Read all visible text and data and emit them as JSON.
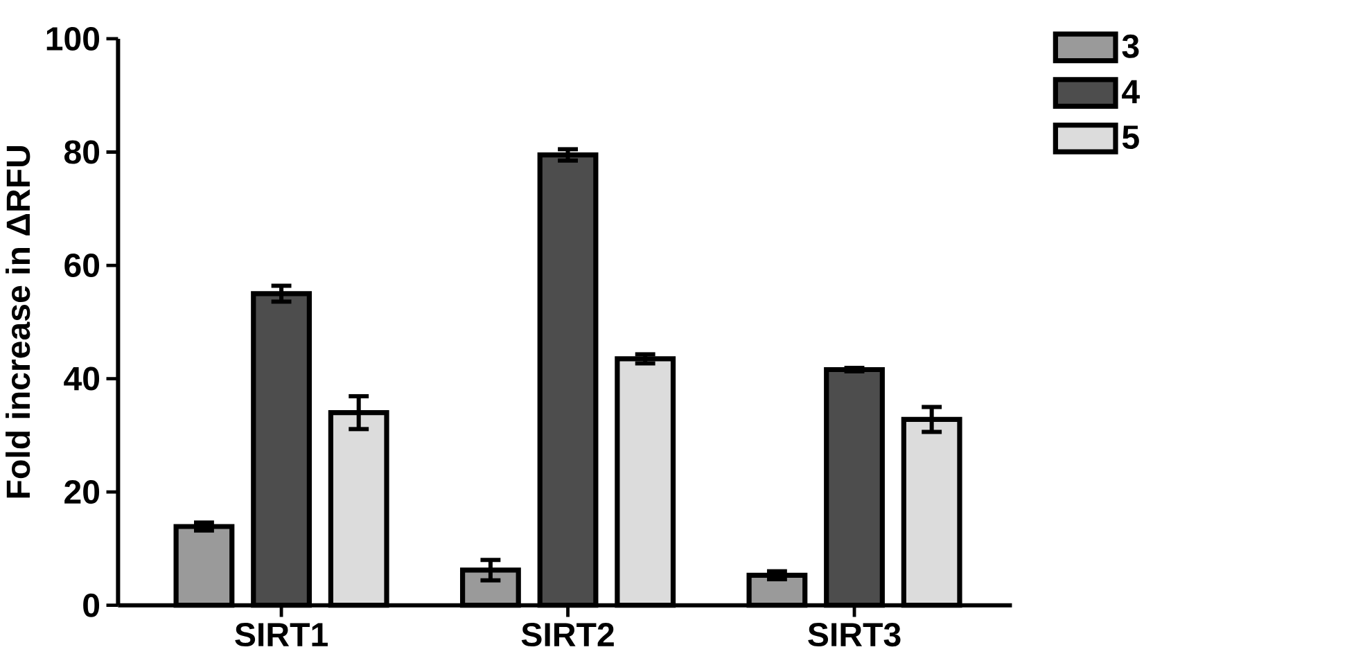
{
  "chart_data": {
    "type": "bar",
    "ylabel": "Fold increase in ΔRFU",
    "categories": [
      "SIRT1",
      "SIRT2",
      "SIRT3"
    ],
    "series": [
      {
        "name": "3",
        "color": "#9a9a9a",
        "values": [
          13.9,
          6.2,
          5.3
        ],
        "errors": [
          0.7,
          1.8,
          0.7
        ]
      },
      {
        "name": "4",
        "color": "#4d4d4d",
        "values": [
          55.0,
          79.5,
          41.6
        ],
        "errors": [
          1.4,
          1.0,
          0.3
        ]
      },
      {
        "name": "5",
        "color": "#dcdcdc",
        "values": [
          34.0,
          43.5,
          32.8
        ],
        "errors": [
          2.9,
          0.8,
          2.2
        ]
      }
    ],
    "ylim": [
      0,
      100
    ],
    "yticks": [
      0,
      20,
      40,
      60,
      80,
      100
    ],
    "grid": false,
    "legend": "top right"
  }
}
